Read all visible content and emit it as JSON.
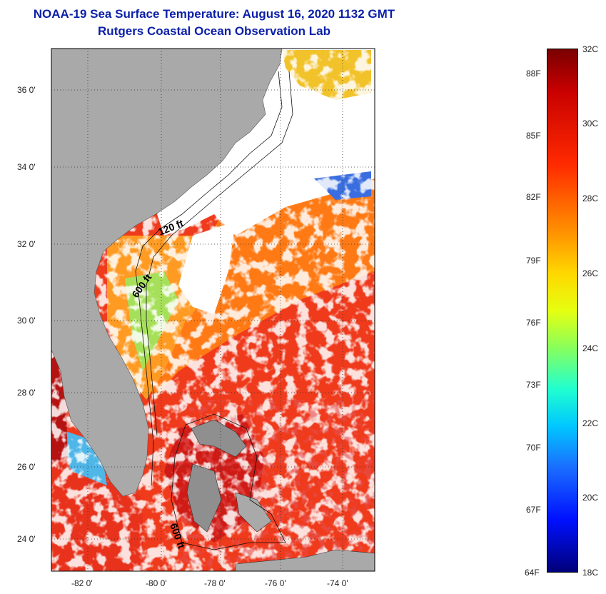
{
  "header": {
    "title": "NOAA-19 Sea Surface Temperature:  August 16, 2020 1132 GMT",
    "subtitle": "Rutgers Coastal Ocean Observation Lab"
  },
  "map": {
    "lat_ticks": [
      "36 0'",
      "34 0'",
      "32 0'",
      "30 0'",
      "28 0'",
      "26 0'",
      "24 0'"
    ],
    "lon_ticks": [
      "-82 0'",
      "-80 0'",
      "-78 0'",
      "-76 0'",
      "-74 0'"
    ],
    "contour_labels": [
      "120 ft",
      "600 ft",
      "600 ft"
    ],
    "colors": {
      "land": "#a9a9a9",
      "cloud": "#ffffff",
      "warm": "#ef3a1c",
      "hot": "#c81414",
      "mid": "#ff8a1a",
      "cool": "#2a4ad8"
    }
  },
  "colorbar": {
    "celsius": [
      "32C",
      "30C",
      "28C",
      "26C",
      "24C",
      "22C",
      "20C",
      "18C"
    ],
    "fahrenheit": [
      "88F",
      "85F",
      "82F",
      "79F",
      "76F",
      "73F",
      "70F",
      "67F",
      "64F"
    ],
    "range_c": [
      18,
      32
    ],
    "range_f": [
      64,
      89.6
    ]
  }
}
